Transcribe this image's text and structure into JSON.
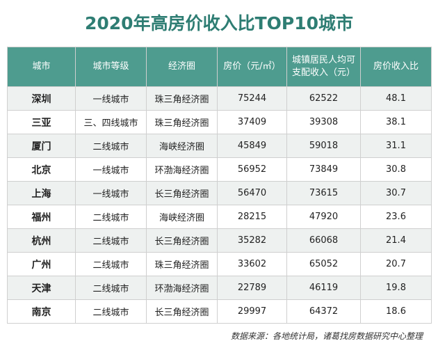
{
  "title": "2020年高房价收入比TOP10城市",
  "headers": [
    {
      "label": "城市"
    },
    {
      "label": "城市等级"
    },
    {
      "label": "经济圈"
    },
    {
      "label": "房价（元/㎡）"
    },
    {
      "label": "城镇居民人均可支配收入（元）"
    },
    {
      "label": "房价收入比"
    }
  ],
  "rows": [
    {
      "city": "深圳",
      "tier": "一线城市",
      "zone": "珠三角经济圈",
      "price": "75244",
      "income": "62522",
      "ratio": "48.1"
    },
    {
      "city": "三亚",
      "tier": "三、四线城市",
      "zone": "珠三角经济圈",
      "price": "37409",
      "income": "39308",
      "ratio": "38.1"
    },
    {
      "city": "厦门",
      "tier": "二线城市",
      "zone": "海峡经济圈",
      "price": "45849",
      "income": "59018",
      "ratio": "31.1"
    },
    {
      "city": "北京",
      "tier": "一线城市",
      "zone": "环渤海经济圈",
      "price": "56952",
      "income": "73849",
      "ratio": "30.8"
    },
    {
      "city": "上海",
      "tier": "一线城市",
      "zone": "长三角经济圈",
      "price": "56470",
      "income": "73615",
      "ratio": "30.7"
    },
    {
      "city": "福州",
      "tier": "二线城市",
      "zone": "海峡经济圈",
      "price": "28215",
      "income": "47920",
      "ratio": "23.6"
    },
    {
      "city": "杭州",
      "tier": "二线城市",
      "zone": "长三角经济圈",
      "price": "35282",
      "income": "66068",
      "ratio": "21.4"
    },
    {
      "city": "广州",
      "tier": "二线城市",
      "zone": "珠三角经济圈",
      "price": "33602",
      "income": "65052",
      "ratio": "20.7"
    },
    {
      "city": "天津",
      "tier": "二线城市",
      "zone": "环渤海经济圈",
      "price": "22789",
      "income": "46119",
      "ratio": "19.8"
    },
    {
      "city": "南京",
      "tier": "二线城市",
      "zone": "长三角经济圈",
      "price": "29997",
      "income": "64372",
      "ratio": "18.6"
    }
  ],
  "source": "数据来源：各地统计局，诸葛找房数据研究中心整理",
  "colors": {
    "title": "#2e7d73",
    "header_bg": "#4e9c8f",
    "alt_row": "#eef1f0"
  }
}
